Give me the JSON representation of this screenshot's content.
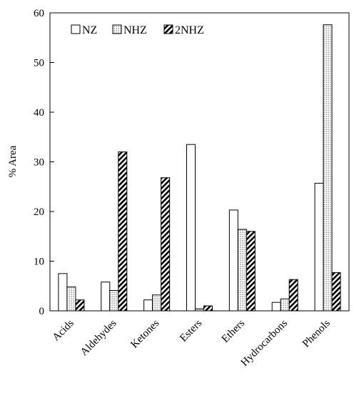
{
  "chart_data": {
    "type": "bar",
    "title": "",
    "xlabel": "",
    "ylabel": "% Area",
    "ylim": [
      0,
      60
    ],
    "yticks": [
      0,
      10,
      20,
      30,
      40,
      50,
      60
    ],
    "grid": false,
    "legend_position": "top-left",
    "categories": [
      "Acids",
      "Aldehydes",
      "Ketones",
      "Esters",
      "Ethers",
      "Hydrocarbons",
      "Phenols"
    ],
    "series": [
      {
        "name": "NZ",
        "pattern": "blank",
        "values": [
          7.5,
          5.8,
          2.2,
          33.5,
          20.3,
          1.7,
          25.7
        ]
      },
      {
        "name": "NHZ",
        "pattern": "dotted",
        "values": [
          4.8,
          4.1,
          3.2,
          0.4,
          16.4,
          2.4,
          57.6
        ]
      },
      {
        "name": "2NHZ",
        "pattern": "diagonal-hatch",
        "values": [
          2.2,
          32.0,
          26.8,
          1.0,
          16.0,
          6.3,
          7.7
        ]
      }
    ]
  }
}
